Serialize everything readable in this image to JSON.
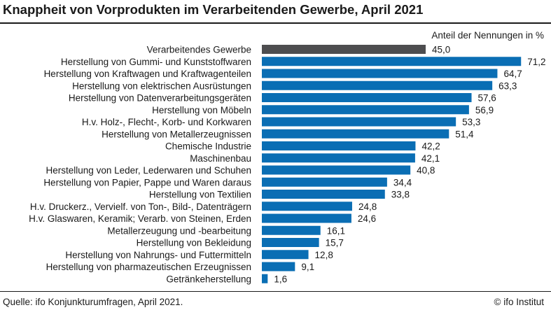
{
  "chart_data": {
    "type": "bar",
    "orientation": "horizontal",
    "title": "Knappheit von Vorprodukten im Verarbeitenden Gewerbe, April 2021",
    "unit_label": "Anteil der Nennungen in %",
    "categories": [
      "Verarbeitendes Gewerbe",
      "Herstellung von Gummi- und Kunststoffwaren",
      "Herstellung von Kraftwagen und Kraftwagenteilen",
      "Herstellung von elektrischen Ausrüstungen",
      "Herstellung von Datenverarbeitungsgeräten",
      "Herstellung von Möbeln",
      "H.v. Holz-, Flecht-, Korb- und Korkwaren",
      "Herstellung von Metallerzeugnissen",
      "Chemische Industrie",
      "Maschinenbau",
      "Herstellung von Leder, Lederwaren und Schuhen",
      "Herstellung von Papier, Pappe und Waren daraus",
      "Herstellung von Textilien",
      "H.v. Druckerz., Vervielf. von Ton-, Bild-, Datenträgern",
      "H.v. Glaswaren, Keramik; Verarb. von Steinen, Erden",
      "Metallerzeugung und -bearbeitung",
      "Herstellung von Bekleidung",
      "Herstellung von Nahrungs- und Futtermitteln",
      "Herstellung von pharmazeutischen Erzeugnissen",
      "Getränkeherstellung"
    ],
    "values": [
      45.0,
      71.2,
      64.7,
      63.3,
      57.6,
      56.9,
      53.3,
      51.4,
      42.2,
      42.1,
      40.8,
      34.4,
      33.8,
      24.8,
      24.6,
      16.1,
      15.7,
      12.8,
      9.1,
      1.6
    ],
    "value_labels": [
      "45,0",
      "71,2",
      "64,7",
      "63,3",
      "57,6",
      "56,9",
      "53,3",
      "51,4",
      "42,2",
      "42,1",
      "40,8",
      "34,4",
      "33,8",
      "24,8",
      "24,6",
      "16,1",
      "15,7",
      "12,8",
      "9,1",
      "1,6"
    ],
    "highlight_index": 0,
    "xlim": [
      0,
      75
    ],
    "grid": false,
    "colors": {
      "highlight": "#4d4d4f",
      "bar": "#0a6eb4"
    }
  },
  "footer": {
    "source": "Quelle: ifo Konjunkturumfragen, April 2021.",
    "credit": "© ifo Institut"
  }
}
